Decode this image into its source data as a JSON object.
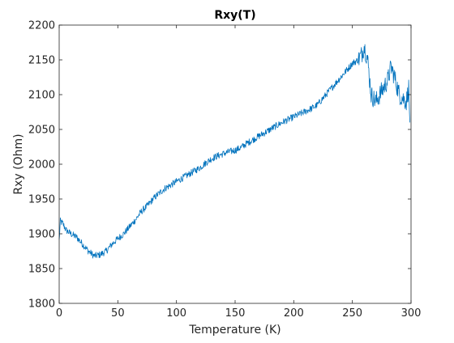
{
  "chart_data": {
    "type": "line",
    "title": "Rxy(T)",
    "xlabel": "Temperature (K)",
    "ylabel": "Rxy (Ohm)",
    "xlim": [
      0,
      300
    ],
    "ylim": [
      1800,
      2200
    ],
    "xticks": [
      "0",
      "50",
      "100",
      "150",
      "200",
      "250",
      "300"
    ],
    "yticks": [
      "1800",
      "1850",
      "1900",
      "1950",
      "2000",
      "2050",
      "2100",
      "2150",
      "2200"
    ],
    "grid": false,
    "legend": "none",
    "line_color": "#0072BD",
    "series": [
      {
        "x": [
          0,
          1,
          3,
          6,
          10,
          15,
          20,
          25,
          30,
          35,
          40,
          45,
          50,
          55,
          60,
          65,
          70,
          75,
          80,
          85,
          90,
          95,
          100,
          105,
          110,
          115,
          120,
          125,
          130,
          135,
          140,
          145,
          150,
          155,
          160,
          165,
          170,
          175,
          180,
          185,
          190,
          195,
          200,
          205,
          210,
          215,
          220,
          225,
          230,
          235,
          240,
          245,
          250,
          255,
          258,
          260,
          263,
          266,
          270,
          275,
          280,
          283,
          286,
          290,
          293,
          296,
          298,
          299
        ],
        "y": [
          1890,
          1918,
          1915,
          1905,
          1900,
          1895,
          1885,
          1875,
          1868,
          1870,
          1875,
          1885,
          1893,
          1900,
          1910,
          1920,
          1932,
          1940,
          1950,
          1958,
          1965,
          1970,
          1975,
          1980,
          1985,
          1990,
          1995,
          2002,
          2008,
          2012,
          2015,
          2018,
          2020,
          2024,
          2030,
          2035,
          2040,
          2045,
          2050,
          2055,
          2060,
          2064,
          2068,
          2072,
          2076,
          2080,
          2085,
          2095,
          2105,
          2115,
          2125,
          2135,
          2145,
          2150,
          2158,
          2170,
          2150,
          2100,
          2090,
          2105,
          2120,
          2140,
          2125,
          2100,
          2095,
          2090,
          2110,
          2060
        ]
      }
    ]
  }
}
